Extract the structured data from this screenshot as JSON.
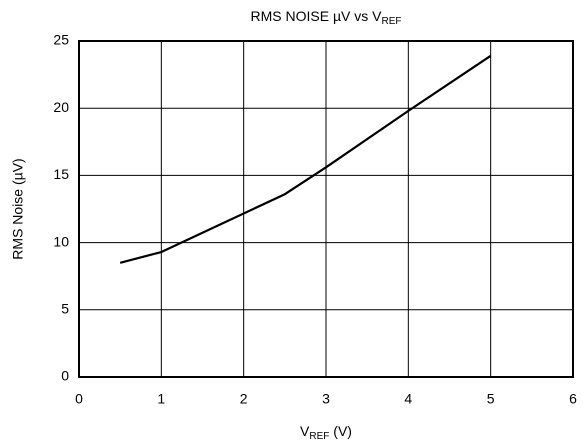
{
  "chart_data": {
    "type": "line",
    "title": [
      "RMS NOISE µV vs V",
      "REF"
    ],
    "xlabel": [
      "V",
      "REF",
      " (V)"
    ],
    "ylabel": "RMS Noise (µV)",
    "x": [
      0.5,
      1,
      2.5,
      3,
      4,
      5
    ],
    "series": [
      {
        "color": "#000000",
        "values": [
          8.5,
          9.3,
          13.6,
          15.6,
          19.8,
          23.9
        ]
      }
    ],
    "xlim": [
      0,
      6
    ],
    "xticks": [
      0,
      1,
      2,
      3,
      4,
      5,
      6
    ],
    "ylim": [
      0,
      25
    ],
    "yticks": [
      0,
      5,
      10,
      15,
      20,
      25
    ],
    "grid": true
  }
}
